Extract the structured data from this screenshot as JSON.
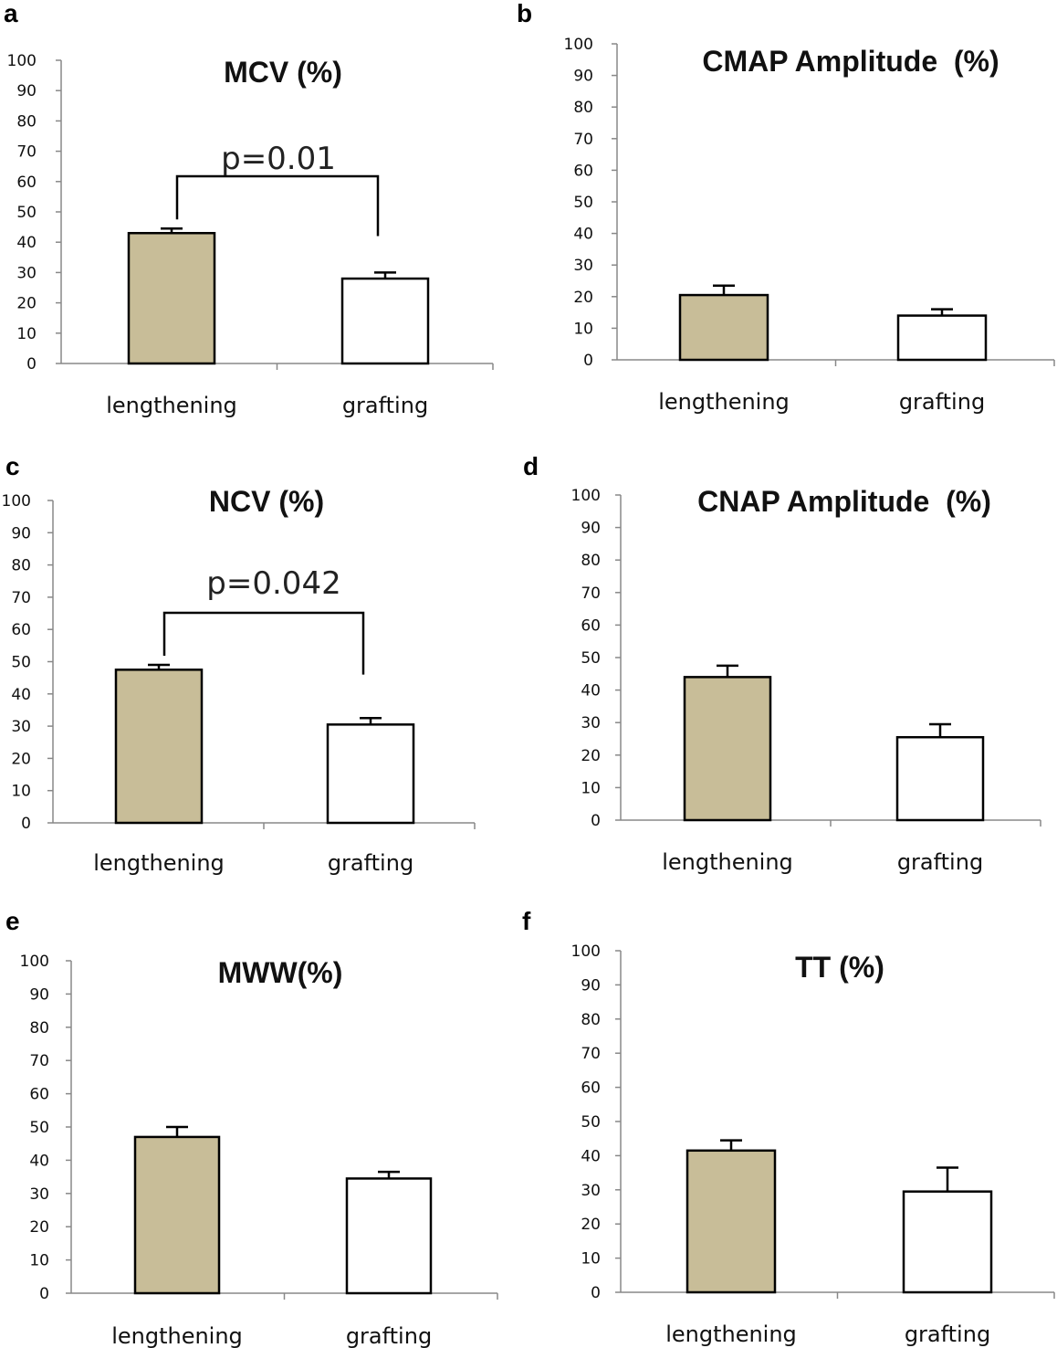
{
  "chart_data": [
    {
      "panel": "a",
      "type": "bar",
      "title": "MCV (%)",
      "categories": [
        "lengthening",
        "grafting"
      ],
      "values": [
        43,
        28
      ],
      "errors": [
        1.5,
        2
      ],
      "colors": [
        "#c8bd98",
        "#ffffff"
      ],
      "ylim": [
        0,
        100
      ],
      "yticks": [
        0,
        10,
        20,
        30,
        40,
        50,
        60,
        70,
        80,
        90,
        100
      ],
      "annotation": "p=0.01",
      "bracket_y": [
        60,
        42
      ]
    },
    {
      "panel": "b",
      "type": "bar",
      "title": "CMAP Amplitude  (%)",
      "categories": [
        "lengthening",
        "grafting"
      ],
      "values": [
        20.5,
        14
      ],
      "errors": [
        3,
        2
      ],
      "colors": [
        "#c8bd98",
        "#ffffff"
      ],
      "ylim": [
        0,
        100
      ],
      "yticks": [
        0,
        10,
        20,
        30,
        40,
        50,
        60,
        70,
        80,
        90,
        100
      ]
    },
    {
      "panel": "c",
      "type": "bar",
      "title": "NCV (%)",
      "categories": [
        "lengthening",
        "grafting"
      ],
      "values": [
        47.5,
        30.5
      ],
      "errors": [
        1.5,
        2
      ],
      "colors": [
        "#c8bd98",
        "#ffffff"
      ],
      "ylim": [
        0,
        100
      ],
      "yticks": [
        0,
        10,
        20,
        30,
        40,
        50,
        60,
        70,
        80,
        90,
        100
      ],
      "annotation": "p=0.042",
      "bracket_y": [
        65,
        46
      ]
    },
    {
      "panel": "d",
      "type": "bar",
      "title": "CNAP Amplitude  (%)",
      "categories": [
        "lengthening",
        "grafting"
      ],
      "values": [
        44,
        25.5
      ],
      "errors": [
        3.5,
        4
      ],
      "colors": [
        "#c8bd98",
        "#ffffff"
      ],
      "ylim": [
        0,
        100
      ],
      "yticks": [
        0,
        10,
        20,
        30,
        40,
        50,
        60,
        70,
        80,
        90,
        100
      ]
    },
    {
      "panel": "e",
      "type": "bar",
      "title": "MWW(%)",
      "categories": [
        "lengthening",
        "grafting"
      ],
      "values": [
        47,
        34.5
      ],
      "errors": [
        3,
        2
      ],
      "colors": [
        "#c8bd98",
        "#ffffff"
      ],
      "ylim": [
        0,
        100
      ],
      "yticks": [
        0,
        10,
        20,
        30,
        40,
        50,
        60,
        70,
        80,
        90,
        100
      ]
    },
    {
      "panel": "f",
      "type": "bar",
      "title": "TT (%)",
      "categories": [
        "lengthening",
        "grafting"
      ],
      "values": [
        41.5,
        29.5
      ],
      "errors": [
        3,
        7
      ],
      "colors": [
        "#c8bd98",
        "#ffffff"
      ],
      "ylim": [
        0,
        100
      ],
      "yticks": [
        0,
        10,
        20,
        30,
        40,
        50,
        60,
        70,
        80,
        90,
        100
      ]
    }
  ]
}
